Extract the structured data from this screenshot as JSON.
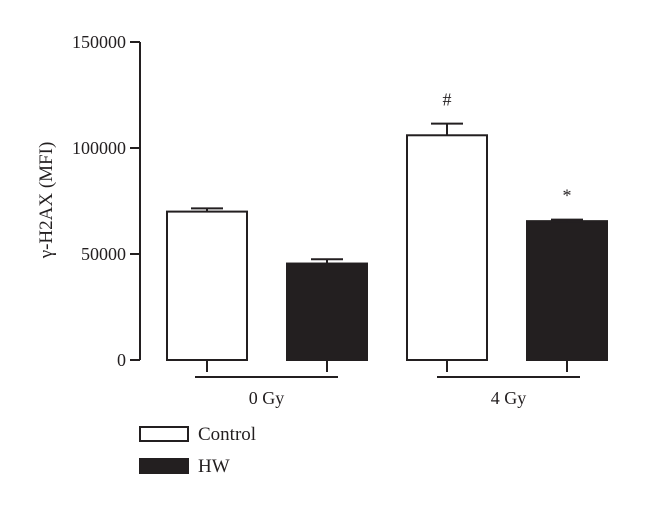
{
  "chart_data": {
    "type": "bar",
    "title": "",
    "xlabel": "",
    "ylabel": "γ-H2AX (MFI)",
    "ylim": [
      0,
      150000
    ],
    "yticks": [
      0,
      50000,
      100000,
      150000
    ],
    "ytick_labels": [
      "0",
      "50000",
      "100000",
      "150000"
    ],
    "categories": [
      "0 Gy",
      "4 Gy"
    ],
    "series": [
      {
        "name": "Control",
        "values": [
          70000,
          106000
        ],
        "errors": [
          1500,
          5500
        ],
        "color": "#ffffff",
        "annotations": [
          "",
          "#"
        ]
      },
      {
        "name": "HW",
        "values": [
          45500,
          65500
        ],
        "errors": [
          2000,
          700
        ],
        "color": "#231f20",
        "annotations": [
          "",
          "*"
        ]
      }
    ],
    "legend": {
      "position": "bottom-left",
      "entries": [
        "Control",
        "HW"
      ]
    },
    "grid": false
  }
}
